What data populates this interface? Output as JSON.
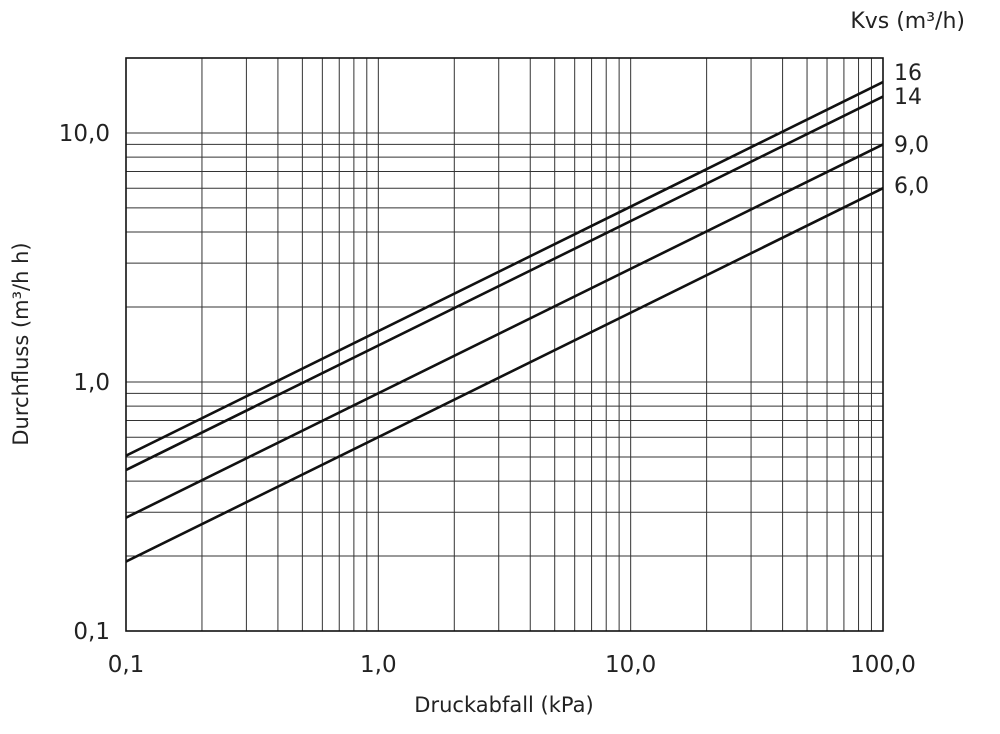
{
  "chart_data": {
    "type": "line",
    "xscale": "log",
    "yscale": "log",
    "xlabel": "Druckabfall (kPa)",
    "ylabel": "Durchfluss  (m³/h h)",
    "legend_title": "Kvs (m³/h)",
    "legend_placement": "right",
    "grid": true,
    "xlim": [
      0.1,
      100.0
    ],
    "ylim": [
      0.1,
      20.0
    ],
    "xticks": [
      {
        "value": 0.1,
        "label": "0,1"
      },
      {
        "value": 1.0,
        "label": "1,0"
      },
      {
        "value": 10.0,
        "label": "10,0"
      },
      {
        "value": 100.0,
        "label": "100,0"
      }
    ],
    "yticks": [
      {
        "value": 0.1,
        "label": "0,1"
      },
      {
        "value": 1.0,
        "label": "1,0"
      },
      {
        "value": 10.0,
        "label": "10,0"
      }
    ],
    "series": [
      {
        "name": "16",
        "kvs": 16,
        "x": [
          0.1,
          100.0
        ],
        "y": [
          0.506,
          16.0
        ]
      },
      {
        "name": "14",
        "kvs": 14,
        "x": [
          0.1,
          100.0
        ],
        "y": [
          0.443,
          14.0
        ]
      },
      {
        "name": "9,0",
        "kvs": 9.0,
        "x": [
          0.1,
          100.0
        ],
        "y": [
          0.285,
          9.0
        ]
      },
      {
        "name": "6,0",
        "kvs": 6.0,
        "x": [
          0.1,
          100.0
        ],
        "y": [
          0.19,
          6.0
        ]
      }
    ]
  }
}
